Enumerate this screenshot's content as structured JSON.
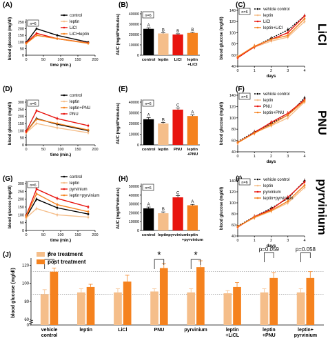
{
  "row_labels": [
    "LiCl",
    "PNU",
    "pyrvinium"
  ],
  "colors": {
    "black": "#000000",
    "peach": "#f5be8a",
    "red": "#e8140e",
    "orange": "#f5821e",
    "gray": "#999999"
  },
  "chart_data": [
    {
      "id": "A",
      "type": "line",
      "panel_label": "(A)",
      "n_label": "n=6",
      "xlabel": "time (min.)",
      "ylabel": "blood glucose (mg/dl)",
      "x": [
        0,
        30,
        90,
        180
      ],
      "xticks": [
        0,
        50,
        100,
        150,
        200
      ],
      "yticks": [
        0,
        50,
        100,
        150,
        200,
        250
      ],
      "xlim": [
        0,
        200
      ],
      "ylim": [
        0,
        250
      ],
      "legend": "top-right",
      "series": [
        {
          "name": "control",
          "color": "black",
          "values": [
            95,
            200,
            150,
            98
          ]
        },
        {
          "name": "leptin",
          "color": "peach",
          "values": [
            88,
            150,
            125,
            88
          ]
        },
        {
          "name": "LiCl",
          "color": "red",
          "values": [
            92,
            165,
            125,
            92
          ]
        },
        {
          "name": "LiCl+leptin",
          "color": "orange",
          "values": [
            88,
            150,
            125,
            90
          ]
        }
      ]
    },
    {
      "id": "B",
      "type": "bar",
      "panel_label": "(B)",
      "n_label": "n=6",
      "ylabel": "AUC (mg/dl*minutes)",
      "categories": [
        "control",
        "leptin",
        "LiCl",
        "leptin\n+LiCl"
      ],
      "values": [
        25500,
        21000,
        20000,
        21500
      ],
      "errors": [
        1000,
        700,
        700,
        600
      ],
      "bar_colors": [
        "black",
        "peach",
        "red",
        "orange"
      ],
      "letters": [
        "A",
        "B",
        "B",
        "B"
      ],
      "yticks": [
        0,
        10000,
        20000,
        30000,
        40000
      ],
      "ylim": [
        0,
        40000
      ]
    },
    {
      "id": "C",
      "type": "line",
      "panel_label": "(C)",
      "n_label": "n=6",
      "xlabel": "days",
      "ylabel": "blood glucose (mg/dl)",
      "x": [
        0,
        1,
        2,
        3,
        4
      ],
      "xticks": [
        0,
        1,
        2,
        3,
        4
      ],
      "yticks": [
        40,
        60,
        80,
        100,
        120,
        140
      ],
      "xlim": [
        0,
        4
      ],
      "ylim": [
        40,
        140
      ],
      "legend": "top-center",
      "series": [
        {
          "name": "vehicle control",
          "color": "black",
          "dashed": true,
          "values": [
            57,
            75,
            90,
            105,
            130
          ]
        },
        {
          "name": "leptin",
          "color": "peach",
          "values": [
            57,
            74,
            85,
            92,
            120
          ]
        },
        {
          "name": "LiCl",
          "color": "red",
          "values": [
            55,
            75,
            88,
            100,
            130
          ]
        },
        {
          "name": "leptin+LiCl",
          "color": "orange",
          "values": [
            57,
            76,
            88,
            95,
            125
          ]
        }
      ]
    },
    {
      "id": "D",
      "type": "line",
      "panel_label": "(D)",
      "n_label": "n=6",
      "xlabel": "time (min.)",
      "ylabel": "blood glucose (mg/dl)",
      "x": [
        0,
        30,
        90,
        180
      ],
      "xticks": [
        0,
        50,
        100,
        150,
        200
      ],
      "yticks": [
        0,
        50,
        100,
        150,
        200,
        250,
        300
      ],
      "xlim": [
        0,
        200
      ],
      "ylim": [
        0,
        300
      ],
      "legend": "top-right",
      "series": [
        {
          "name": "control",
          "color": "black",
          "values": [
            90,
            185,
            145,
            100
          ]
        },
        {
          "name": "leptin",
          "color": "peach",
          "values": [
            85,
            150,
            120,
            85
          ]
        },
        {
          "name": "leptin+PNU",
          "color": "orange",
          "values": [
            90,
            180,
            150,
            105
          ]
        },
        {
          "name": "PNU",
          "color": "red",
          "values": [
            95,
            240,
            185,
            135
          ]
        }
      ]
    },
    {
      "id": "E",
      "type": "bar",
      "panel_label": "(E)",
      "n_label": "n=6",
      "ylabel": "AUC (mg/dl*minutes)",
      "categories": [
        "control",
        "leptin",
        "PNU",
        "leptin\n+PNU"
      ],
      "values": [
        24000,
        20000,
        33000,
        27000
      ],
      "errors": [
        1500,
        1000,
        1500,
        1000
      ],
      "bar_colors": [
        "black",
        "peach",
        "red",
        "orange"
      ],
      "letters": [
        "A",
        "B",
        "C",
        "A"
      ],
      "yticks": [
        0,
        10000,
        20000,
        30000,
        40000
      ],
      "ylim": [
        0,
        40000
      ]
    },
    {
      "id": "F",
      "type": "line",
      "panel_label": "(F)",
      "n_label": "n=6",
      "xlabel": "days",
      "ylabel": "blood glucose (mg/dl)",
      "x": [
        0,
        1,
        2,
        3,
        4
      ],
      "xticks": [
        0,
        1,
        2,
        3,
        4
      ],
      "yticks": [
        40,
        60,
        80,
        100,
        120,
        140
      ],
      "xlim": [
        0,
        4
      ],
      "ylim": [
        40,
        140
      ],
      "legend": "top-center",
      "series": [
        {
          "name": "vehicle control",
          "color": "black",
          "dashed": true,
          "values": [
            58,
            75,
            90,
            105,
            135
          ]
        },
        {
          "name": "leptin",
          "color": "peach",
          "values": [
            57,
            74,
            86,
            100,
            128
          ]
        },
        {
          "name": "PNU",
          "color": "red",
          "values": [
            56,
            74,
            92,
            108,
            132
          ]
        },
        {
          "name": "leptin+PNU",
          "color": "orange",
          "values": [
            56,
            73,
            88,
            105,
            130
          ]
        }
      ]
    },
    {
      "id": "G",
      "type": "line",
      "panel_label": "(G)",
      "n_label": "n=6",
      "xlabel": "time (min.)",
      "ylabel": "blood glucose (mg/dl)",
      "x": [
        0,
        30,
        90,
        180
      ],
      "xticks": [
        0,
        50,
        100,
        150,
        200
      ],
      "yticks": [
        0,
        50,
        100,
        150,
        200,
        250,
        300
      ],
      "xlim": [
        0,
        200
      ],
      "ylim": [
        0,
        300
      ],
      "legend": "top-right",
      "series": [
        {
          "name": "control",
          "color": "black",
          "values": [
            85,
            200,
            145,
            105
          ]
        },
        {
          "name": "leptin",
          "color": "peach",
          "values": [
            80,
            140,
            100,
            85
          ]
        },
        {
          "name": "pyrvinium",
          "color": "red",
          "values": [
            95,
            265,
            205,
            150
          ]
        },
        {
          "name": "leptin+pyrvinium",
          "color": "orange",
          "values": [
            90,
            235,
            165,
            120
          ]
        }
      ]
    },
    {
      "id": "H",
      "type": "bar",
      "panel_label": "(H)",
      "n_label": "n=6",
      "ylabel": "AUC (mg/dl*minutes)",
      "categories": [
        "control",
        "leptin",
        "pyrvinium",
        "leptin\n+pyrvinium"
      ],
      "values": [
        25000,
        19500,
        37500,
        28500
      ],
      "errors": [
        1500,
        1500,
        2000,
        1000
      ],
      "bar_colors": [
        "black",
        "peach",
        "red",
        "orange"
      ],
      "letters": [
        "A",
        "B",
        "C",
        "A"
      ],
      "yticks": [
        0,
        10000,
        20000,
        30000,
        40000,
        50000
      ],
      "ylim": [
        0,
        50000
      ]
    },
    {
      "id": "I",
      "type": "line",
      "panel_label": "(I)",
      "n_label": "n=6",
      "xlabel": "days",
      "ylabel": "blood glucose (mg/dl)",
      "x": [
        0,
        1,
        2,
        3,
        4
      ],
      "xticks": [
        0,
        1,
        2,
        3,
        4
      ],
      "yticks": [
        40,
        60,
        80,
        100,
        120,
        140
      ],
      "xlim": [
        0,
        4
      ],
      "ylim": [
        40,
        140
      ],
      "legend": "top-center",
      "series": [
        {
          "name": "vehicle control",
          "color": "black",
          "dashed": true,
          "values": [
            58,
            75,
            90,
            108,
            140
          ]
        },
        {
          "name": "leptin",
          "color": "peach",
          "values": [
            57,
            73,
            85,
            100,
            128
          ]
        },
        {
          "name": "pyrvinium",
          "color": "red",
          "values": [
            56,
            75,
            88,
            110,
            138
          ]
        },
        {
          "name": "leptin+pyrvinium",
          "color": "orange",
          "values": [
            57,
            74,
            86,
            103,
            132
          ]
        }
      ]
    },
    {
      "id": "J",
      "type": "bar",
      "panel_label": "(J)",
      "ylabel": "blood glucose (mg/dl)",
      "categories": [
        "vehicle\ncontrol",
        "leptin",
        "LiCl",
        "PNU",
        "pyrvinium",
        "leptin\n+LiCL",
        "leptin\n+PNU",
        "leptin+\npyrvinium"
      ],
      "series": [
        {
          "name": "pre treatment",
          "color": "peach",
          "values": [
            88,
            90,
            90,
            91,
            90,
            89,
            90,
            90
          ],
          "errors": [
            5,
            4,
            4,
            3,
            4,
            3,
            4,
            4
          ]
        },
        {
          "name": "post treatment",
          "color": "orange",
          "values": [
            113,
            96,
            102,
            117,
            118,
            96,
            106,
            106
          ],
          "errors": [
            4,
            3,
            7,
            5,
            7,
            5,
            6,
            7
          ]
        }
      ],
      "legend": "top-left",
      "yticks": [
        0,
        60,
        80,
        100,
        120
      ],
      "ylim": [
        60,
        125
      ],
      "y_axis_break": true,
      "reference_lines": [
        88,
        113
      ],
      "significance": [
        {
          "group": 0,
          "text": "*"
        },
        {
          "group": 3,
          "text": "*"
        },
        {
          "group": 4,
          "text": "*"
        },
        {
          "group": 6,
          "text": "p=0.059"
        },
        {
          "group": 7,
          "text": "p=0.058"
        }
      ]
    }
  ]
}
